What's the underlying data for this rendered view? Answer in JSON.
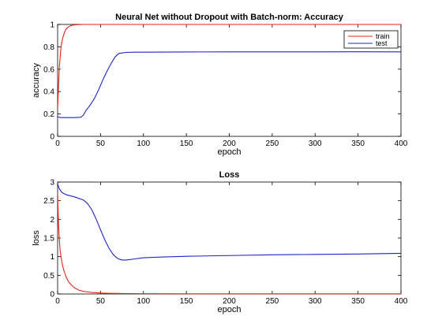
{
  "chart_data": [
    {
      "type": "line",
      "title": "Neural Net without Dropout with Batch-norm: Accuracy",
      "xlabel": "epoch",
      "ylabel": "accuracy",
      "xlim": [
        0,
        400
      ],
      "ylim": [
        0,
        1
      ],
      "xticks": [
        "0",
        "50",
        "100",
        "150",
        "200",
        "250",
        "300",
        "350",
        "400"
      ],
      "yticks": [
        "0",
        "0.2",
        "0.4",
        "0.6",
        "0.8",
        "1"
      ],
      "grid": false,
      "legend": "top-right",
      "series": [
        {
          "name": "train",
          "color": "#e8221b",
          "x": [
            0,
            2,
            4,
            6,
            8,
            10,
            12,
            15,
            18,
            21,
            25,
            30,
            40,
            60,
            100,
            200,
            300,
            400
          ],
          "y": [
            0.25,
            0.62,
            0.8,
            0.88,
            0.93,
            0.96,
            0.975,
            0.988,
            0.994,
            0.997,
            0.999,
            1.0,
            1.0,
            1.0,
            1.0,
            1.0,
            1.0,
            1.0
          ]
        },
        {
          "name": "test",
          "color": "#1f23c7",
          "x": [
            0,
            3,
            10,
            20,
            27,
            30,
            33,
            38,
            43,
            48,
            53,
            58,
            63,
            67,
            71,
            75,
            80,
            90,
            100,
            150,
            200,
            250,
            300,
            350,
            400
          ],
          "y": [
            0.175,
            0.168,
            0.168,
            0.168,
            0.17,
            0.19,
            0.23,
            0.28,
            0.34,
            0.42,
            0.51,
            0.59,
            0.66,
            0.71,
            0.74,
            0.745,
            0.75,
            0.752,
            0.752,
            0.754,
            0.755,
            0.755,
            0.755,
            0.756,
            0.755
          ]
        }
      ]
    },
    {
      "type": "line",
      "title": "Loss",
      "xlabel": "epoch",
      "ylabel": "loss",
      "xlim": [
        0,
        400
      ],
      "ylim": [
        0,
        3
      ],
      "xticks": [
        "0",
        "50",
        "100",
        "150",
        "200",
        "250",
        "300",
        "350",
        "400"
      ],
      "yticks": [
        "0",
        "0.5",
        "1",
        "1.5",
        "2",
        "2.5",
        "3"
      ],
      "grid": false,
      "series": [
        {
          "name": "train",
          "color": "#e8221b",
          "x": [
            0,
            1,
            2,
            3,
            5,
            7,
            10,
            13,
            16,
            20,
            25,
            30,
            40,
            50,
            60,
            75,
            100,
            150,
            200,
            300,
            400
          ],
          "y": [
            2.7,
            1.9,
            1.45,
            1.15,
            0.85,
            0.65,
            0.45,
            0.32,
            0.24,
            0.16,
            0.1,
            0.07,
            0.04,
            0.025,
            0.018,
            0.012,
            0.008,
            0.005,
            0.004,
            0.003,
            0.003
          ]
        },
        {
          "name": "test",
          "color": "#1f23c7",
          "x": [
            0,
            2,
            5,
            10,
            20,
            30,
            35,
            40,
            45,
            50,
            55,
            60,
            65,
            70,
            75,
            80,
            90,
            100,
            120,
            150,
            200,
            250,
            300,
            350,
            400
          ],
          "y": [
            2.95,
            2.82,
            2.72,
            2.66,
            2.6,
            2.52,
            2.42,
            2.25,
            2.0,
            1.72,
            1.45,
            1.22,
            1.05,
            0.95,
            0.91,
            0.91,
            0.94,
            0.97,
            0.99,
            1.01,
            1.03,
            1.05,
            1.06,
            1.07,
            1.09
          ]
        }
      ]
    }
  ]
}
